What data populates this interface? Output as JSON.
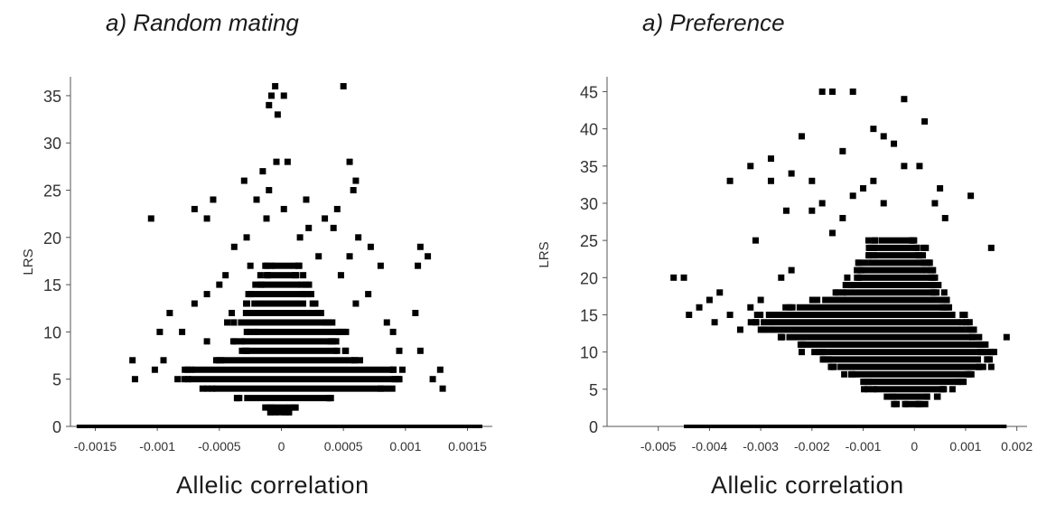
{
  "panels": [
    {
      "title": "a) Random mating",
      "xlabel": "Allelic correlation",
      "ylabel": "LRS"
    },
    {
      "title": "a) Preference",
      "xlabel": "Allelic correlation",
      "ylabel": "LRS"
    }
  ],
  "chart_data": [
    {
      "type": "scatter",
      "title": "a) Random mating",
      "xlabel": "Allelic correlation",
      "ylabel": "LRS",
      "xlim": [
        -0.0017,
        0.0017
      ],
      "ylim": [
        0,
        37
      ],
      "xticks": [
        -0.0015,
        -0.001,
        -0.0005,
        0,
        0.0005,
        0.001,
        0.0015
      ],
      "xtick_labels": [
        "-0.0015",
        "-0.001",
        "-0.0005",
        "0",
        "0.0005",
        "0.001",
        "0.0015"
      ],
      "yticks": [
        0,
        5,
        10,
        15,
        20,
        25,
        30,
        35
      ],
      "grid": false,
      "points": [
        [
          -5e-05,
          36
        ],
        [
          0.0005,
          36
        ],
        [
          -8e-05,
          35
        ],
        [
          2e-05,
          35
        ],
        [
          -0.0001,
          34
        ],
        [
          -3e-05,
          33
        ],
        [
          -4e-05,
          28
        ],
        [
          5e-05,
          28
        ],
        [
          0.00055,
          28
        ],
        [
          -0.00015,
          27
        ],
        [
          -0.0003,
          26
        ],
        [
          0.0006,
          26
        ],
        [
          0.00058,
          25
        ],
        [
          -0.0001,
          25
        ],
        [
          -0.0002,
          24
        ],
        [
          0.0002,
          24
        ],
        [
          -0.00055,
          24
        ],
        [
          2e-05,
          23
        ],
        [
          -0.0007,
          23
        ],
        [
          0.00045,
          23
        ],
        [
          -0.00012,
          22
        ],
        [
          0.00035,
          22
        ],
        [
          -0.00105,
          22
        ],
        [
          -0.0006,
          22
        ],
        [
          0.00022,
          21
        ],
        [
          0.00042,
          21
        ],
        [
          0.00062,
          20
        ],
        [
          -0.00028,
          20
        ],
        [
          0.00015,
          20
        ],
        [
          -0.00038,
          19
        ],
        [
          0.00072,
          19
        ],
        [
          0.0008,
          17
        ],
        [
          0.00112,
          19
        ],
        [
          0.00118,
          18
        ],
        [
          0.0011,
          17
        ],
        [
          0.00055,
          18
        ],
        [
          -0.00045,
          16
        ],
        [
          -0.0006,
          14
        ],
        [
          -0.0009,
          12
        ],
        [
          -0.00098,
          10
        ],
        [
          0.00108,
          12
        ],
        [
          0.00112,
          8
        ],
        [
          -0.0012,
          7
        ],
        [
          -0.00118,
          5
        ],
        [
          0.00122,
          5
        ],
        [
          0.00128,
          6
        ],
        [
          0.0013,
          4
        ],
        [
          -0.00102,
          6
        ],
        [
          -0.00095,
          7
        ],
        [
          0.0009,
          10
        ],
        [
          0.00095,
          8
        ],
        [
          -0.0008,
          10
        ],
        [
          -0.0007,
          13
        ],
        [
          0.0006,
          13
        ],
        [
          0.00085,
          11
        ],
        [
          0.0007,
          14
        ],
        [
          -0.0005,
          15
        ],
        [
          -0.00025,
          17
        ],
        [
          0.0003,
          18
        ],
        [
          0.00048,
          16
        ],
        [
          -0.0004,
          12
        ],
        [
          -0.0006,
          9
        ]
      ],
      "dense_bands": [
        {
          "y": 0,
          "x_min": -0.00165,
          "x_max": 0.00162
        },
        {
          "y": 1.5,
          "x_min": -5e-05,
          "x_max": 3e-05
        },
        {
          "y": 2,
          "x_min": -8e-05,
          "x_max": 5e-05
        },
        {
          "y": 3,
          "x_min": -0.0003,
          "x_max": 0.0004
        },
        {
          "y": 4,
          "x_min": -0.00055,
          "x_max": 0.00082
        },
        {
          "y": 5,
          "x_min": -0.00075,
          "x_max": 0.00092
        },
        {
          "y": 6,
          "x_min": -0.00072,
          "x_max": 0.0009
        },
        {
          "y": 7,
          "x_min": -0.00048,
          "x_max": 0.00058
        },
        {
          "y": 8,
          "x_min": -0.00028,
          "x_max": 0.00045
        },
        {
          "y": 9,
          "x_min": -0.00032,
          "x_max": 0.0004
        },
        {
          "y": 10,
          "x_min": -0.00022,
          "x_max": 0.00048
        },
        {
          "y": 11,
          "x_min": -0.00035,
          "x_max": 0.00035
        },
        {
          "y": 12,
          "x_min": -0.00022,
          "x_max": 0.0003
        },
        {
          "y": 13,
          "x_min": -0.0002,
          "x_max": 0.0002
        },
        {
          "y": 14,
          "x_min": -0.0002,
          "x_max": 0.0002
        },
        {
          "y": 15,
          "x_min": -0.00015,
          "x_max": 0.00015
        },
        {
          "y": 16,
          "x_min": -0.00012,
          "x_max": 0.0001
        },
        {
          "y": 17,
          "x_min": -8e-05,
          "x_max": 8e-05
        }
      ]
    },
    {
      "type": "scatter",
      "title": "a) Preference",
      "xlabel": "Allelic correlation",
      "ylabel": "LRS",
      "xlim": [
        -0.006,
        0.0022
      ],
      "ylim": [
        0,
        47
      ],
      "xticks": [
        -0.005,
        -0.004,
        -0.003,
        -0.002,
        -0.001,
        0,
        0.001,
        0.002
      ],
      "xtick_labels": [
        "-0.005",
        "-0.004",
        "-0.003",
        "-0.002",
        "-0.001",
        "0",
        "0.001",
        "0.002"
      ],
      "yticks": [
        0,
        5,
        10,
        15,
        20,
        25,
        30,
        35,
        40,
        45
      ],
      "grid": false,
      "points": [
        [
          -0.0018,
          45
        ],
        [
          -0.0016,
          45
        ],
        [
          -0.0012,
          45
        ],
        [
          -0.0002,
          44
        ],
        [
          0.0002,
          41
        ],
        [
          -0.0008,
          40
        ],
        [
          -0.0022,
          39
        ],
        [
          -0.0006,
          39
        ],
        [
          -0.0004,
          38
        ],
        [
          -0.0014,
          37
        ],
        [
          -0.0028,
          36
        ],
        [
          -0.0032,
          35
        ],
        [
          -0.0002,
          35
        ],
        [
          0.0001,
          35
        ],
        [
          -0.0024,
          34
        ],
        [
          -0.002,
          33
        ],
        [
          -0.0036,
          33
        ],
        [
          -0.0028,
          33
        ],
        [
          0.0005,
          32
        ],
        [
          0.0011,
          31
        ],
        [
          -0.0025,
          29
        ],
        [
          -0.0031,
          25
        ],
        [
          0.0015,
          24
        ],
        [
          -0.0045,
          20
        ],
        [
          -0.0047,
          20
        ],
        [
          -0.004,
          17
        ],
        [
          -0.0042,
          16
        ],
        [
          -0.0039,
          14
        ],
        [
          -0.0044,
          15
        ],
        [
          -0.0034,
          13
        ],
        [
          -0.0038,
          18
        ],
        [
          -0.0029,
          13
        ],
        [
          0.0018,
          12
        ],
        [
          0.0015,
          8
        ],
        [
          0.0013,
          10
        ],
        [
          -0.0022,
          10
        ],
        [
          -0.0014,
          28
        ],
        [
          -0.0006,
          30
        ],
        [
          -0.001,
          32
        ],
        [
          0.0006,
          28
        ],
        [
          0.0003,
          22
        ],
        [
          -0.0018,
          30
        ],
        [
          -0.002,
          29
        ],
        [
          -0.0012,
          31
        ],
        [
          -0.0008,
          33
        ],
        [
          -0.0016,
          26
        ],
        [
          0.0004,
          30
        ],
        [
          -0.0032,
          16
        ],
        [
          -0.0036,
          15
        ],
        [
          -0.003,
          17
        ],
        [
          -0.0026,
          20
        ],
        [
          -0.0024,
          21
        ]
      ],
      "dense_bands": [
        {
          "y": 0,
          "x_min": -0.0045,
          "x_max": 0.0018
        },
        {
          "y": 3,
          "x_min": -0.0002,
          "x_max": 0.0001
        },
        {
          "y": 4,
          "x_min": -0.0004,
          "x_max": 0.0003
        },
        {
          "y": 5,
          "x_min": -0.0008,
          "x_max": 0.0006
        },
        {
          "y": 6,
          "x_min": -0.0009,
          "x_max": 0.0009
        },
        {
          "y": 7,
          "x_min": -0.0012,
          "x_max": 0.0011
        },
        {
          "y": 8,
          "x_min": -0.0015,
          "x_max": 0.0013
        },
        {
          "y": 9,
          "x_min": -0.0017,
          "x_max": 0.0013
        },
        {
          "y": 10,
          "x_min": -0.0018,
          "x_max": 0.0014
        },
        {
          "y": 11,
          "x_min": -0.0022,
          "x_max": 0.0013
        },
        {
          "y": 12,
          "x_min": -0.0025,
          "x_max": 0.0011
        },
        {
          "y": 13,
          "x_min": -0.0028,
          "x_max": 0.001
        },
        {
          "y": 14,
          "x_min": -0.003,
          "x_max": 0.0009
        },
        {
          "y": 15,
          "x_min": -0.0029,
          "x_max": 0.0008
        },
        {
          "y": 16,
          "x_min": -0.0023,
          "x_max": 0.0006
        },
        {
          "y": 17,
          "x_min": -0.0018,
          "x_max": 0.0005
        },
        {
          "y": 18,
          "x_min": -0.0014,
          "x_max": 0.0004
        },
        {
          "y": 19,
          "x_min": -0.0012,
          "x_max": 0.0004
        },
        {
          "y": 20,
          "x_min": -0.0011,
          "x_max": 0.0003
        },
        {
          "y": 21,
          "x_min": -0.001,
          "x_max": 0.0002
        },
        {
          "y": 22,
          "x_min": -0.0009,
          "x_max": 0.0002
        },
        {
          "y": 23,
          "x_min": -0.0008,
          "x_max": 0.0001
        },
        {
          "y": 24,
          "x_min": -0.0008,
          "x_max": 0.0001
        },
        {
          "y": 25,
          "x_min": -0.0007,
          "x_max": 0.0
        }
      ]
    }
  ]
}
